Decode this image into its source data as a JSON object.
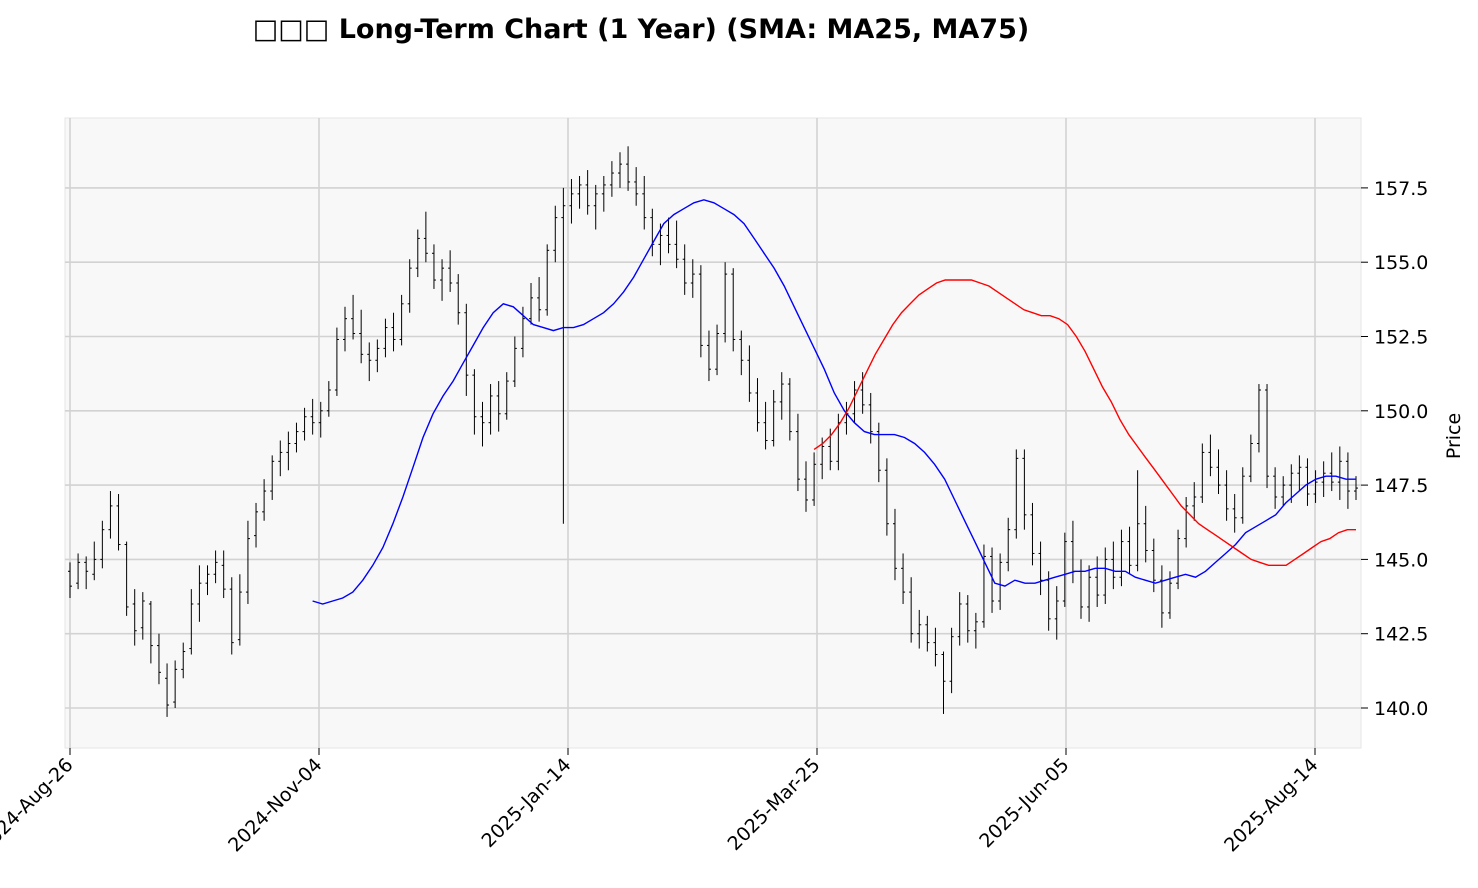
{
  "chart_data": {
    "type": "candlestick",
    "title": "□□□ Long-Term Chart (1 Year) (SMA: MA25, MA75)",
    "xlabel": "",
    "ylabel": "Price",
    "ylim": [
      138.6,
      159.8
    ],
    "y_ticks": [
      "140.0",
      "142.5",
      "145.0",
      "147.5",
      "150.0",
      "152.5",
      "155.0",
      "157.5"
    ],
    "x_ticks": [
      "2024-Aug-26",
      "2024-Nov-04",
      "2025-Jan-14",
      "2025-Mar-25",
      "2025-Jun-05",
      "2025-Aug-14"
    ],
    "grid": true,
    "bar_color": "#000000",
    "ohlc_note": "approximate daily prices read from the chart, one per trading day (~250 days)",
    "ohlc": [
      [
        144.6,
        144.9,
        143.7,
        144.1
      ],
      [
        144.2,
        145.2,
        144.0,
        144.9
      ],
      [
        144.9,
        145.1,
        144.0,
        144.6
      ],
      [
        144.5,
        145.6,
        144.3,
        145.0
      ],
      [
        145.0,
        146.3,
        144.7,
        146.0
      ],
      [
        146.0,
        147.3,
        145.7,
        146.8
      ],
      [
        146.8,
        147.2,
        145.3,
        145.5
      ],
      [
        145.5,
        145.6,
        143.1,
        143.4
      ],
      [
        143.5,
        144.0,
        142.1,
        142.6
      ],
      [
        142.7,
        143.9,
        142.3,
        143.6
      ],
      [
        143.5,
        143.6,
        141.5,
        142.1
      ],
      [
        142.1,
        142.5,
        140.8,
        141.2
      ],
      [
        141.0,
        141.5,
        139.7,
        140.1
      ],
      [
        140.2,
        141.6,
        140.0,
        141.3
      ],
      [
        141.3,
        142.2,
        141.0,
        141.9
      ],
      [
        142.0,
        144.0,
        141.8,
        143.5
      ],
      [
        143.5,
        144.8,
        142.9,
        144.2
      ],
      [
        144.2,
        144.8,
        143.8,
        144.5
      ],
      [
        144.5,
        145.3,
        144.2,
        144.9
      ],
      [
        144.8,
        145.3,
        143.7,
        144.0
      ],
      [
        144.0,
        144.4,
        141.8,
        142.2
      ],
      [
        142.3,
        144.5,
        142.1,
        143.9
      ],
      [
        143.9,
        146.3,
        143.5,
        145.7
      ],
      [
        145.8,
        146.9,
        145.4,
        146.6
      ],
      [
        146.6,
        147.7,
        146.3,
        147.3
      ],
      [
        147.3,
        148.5,
        147.0,
        148.3
      ],
      [
        148.3,
        149.0,
        147.8,
        148.6
      ],
      [
        148.6,
        149.3,
        148.0,
        148.9
      ],
      [
        148.9,
        149.6,
        148.6,
        149.3
      ],
      [
        149.3,
        150.1,
        149.0,
        149.8
      ],
      [
        149.8,
        150.4,
        149.2,
        149.6
      ],
      [
        149.6,
        150.3,
        149.1,
        150.0
      ],
      [
        150.0,
        151.0,
        149.8,
        150.7
      ],
      [
        150.7,
        152.8,
        150.5,
        152.4
      ],
      [
        152.4,
        153.5,
        152.0,
        153.1
      ],
      [
        153.1,
        153.9,
        152.4,
        152.6
      ],
      [
        152.6,
        153.4,
        151.6,
        151.9
      ],
      [
        151.9,
        152.3,
        151.0,
        151.7
      ],
      [
        151.7,
        152.4,
        151.3,
        152.1
      ],
      [
        152.1,
        153.1,
        151.8,
        152.8
      ],
      [
        152.8,
        153.3,
        152.0,
        152.4
      ],
      [
        152.4,
        153.9,
        152.2,
        153.6
      ],
      [
        153.6,
        155.1,
        153.3,
        154.8
      ],
      [
        154.8,
        156.1,
        154.5,
        155.8
      ],
      [
        155.8,
        156.7,
        155.0,
        155.3
      ],
      [
        155.3,
        155.6,
        154.1,
        154.4
      ],
      [
        154.4,
        155.1,
        153.7,
        154.8
      ],
      [
        154.8,
        155.4,
        154.0,
        154.3
      ],
      [
        154.3,
        154.6,
        152.9,
        153.3
      ],
      [
        153.3,
        153.6,
        150.5,
        151.2
      ],
      [
        151.2,
        151.4,
        149.2,
        149.8
      ],
      [
        149.8,
        150.3,
        148.8,
        149.6
      ],
      [
        149.6,
        150.9,
        149.2,
        150.5
      ],
      [
        150.5,
        151.0,
        149.3,
        149.9
      ],
      [
        149.9,
        151.3,
        149.7,
        151.0
      ],
      [
        151.0,
        152.5,
        150.8,
        152.1
      ],
      [
        152.1,
        153.5,
        151.8,
        153.1
      ],
      [
        153.1,
        154.3,
        152.9,
        153.8
      ],
      [
        153.8,
        154.5,
        153.0,
        153.4
      ],
      [
        153.4,
        155.6,
        153.2,
        155.4
      ],
      [
        155.4,
        156.9,
        155.0,
        156.5
      ],
      [
        156.5,
        157.5,
        146.2,
        156.9
      ],
      [
        156.9,
        157.8,
        156.3,
        157.3
      ],
      [
        157.3,
        157.9,
        156.8,
        157.6
      ],
      [
        157.6,
        158.1,
        156.6,
        156.9
      ],
      [
        156.9,
        157.6,
        156.1,
        157.3
      ],
      [
        157.3,
        157.9,
        156.7,
        157.6
      ],
      [
        157.6,
        158.4,
        157.2,
        158.0
      ],
      [
        158.0,
        158.7,
        157.5,
        158.3
      ],
      [
        158.3,
        158.9,
        157.4,
        157.7
      ],
      [
        157.7,
        158.2,
        156.9,
        157.3
      ],
      [
        157.3,
        157.9,
        156.1,
        156.5
      ],
      [
        156.5,
        156.8,
        155.2,
        155.6
      ],
      [
        155.6,
        156.3,
        154.9,
        155.9
      ],
      [
        155.9,
        156.5,
        155.3,
        155.6
      ],
      [
        155.6,
        156.4,
        154.8,
        155.1
      ],
      [
        155.1,
        155.6,
        153.9,
        154.3
      ],
      [
        154.3,
        155.1,
        153.8,
        154.6
      ],
      [
        154.6,
        154.9,
        151.8,
        152.2
      ],
      [
        152.2,
        152.7,
        151.0,
        151.4
      ],
      [
        151.4,
        152.9,
        151.2,
        152.6
      ],
      [
        152.6,
        155.0,
        152.3,
        154.6
      ],
      [
        154.6,
        154.8,
        152.0,
        152.4
      ],
      [
        152.4,
        152.7,
        151.2,
        151.7
      ],
      [
        151.7,
        152.2,
        150.3,
        150.6
      ],
      [
        150.6,
        151.1,
        149.3,
        149.6
      ],
      [
        149.6,
        150.3,
        148.7,
        149.0
      ],
      [
        149.0,
        150.7,
        148.8,
        150.3
      ],
      [
        150.3,
        151.3,
        149.7,
        150.9
      ],
      [
        150.9,
        151.1,
        149.0,
        149.3
      ],
      [
        149.3,
        149.9,
        147.3,
        147.7
      ],
      [
        147.7,
        148.3,
        146.6,
        147.0
      ],
      [
        147.0,
        148.6,
        146.8,
        148.2
      ],
      [
        148.2,
        149.1,
        147.7,
        148.8
      ],
      [
        148.8,
        149.4,
        148.0,
        148.3
      ],
      [
        148.3,
        149.9,
        148.0,
        149.6
      ],
      [
        149.6,
        150.3,
        149.2,
        149.9
      ],
      [
        149.9,
        151.0,
        149.6,
        150.7
      ],
      [
        150.7,
        151.3,
        149.9,
        150.2
      ],
      [
        150.2,
        150.6,
        148.9,
        149.3
      ],
      [
        149.3,
        149.6,
        147.6,
        148.0
      ],
      [
        148.0,
        148.4,
        145.8,
        146.2
      ],
      [
        146.2,
        146.7,
        144.3,
        144.7
      ],
      [
        144.7,
        145.2,
        143.5,
        143.9
      ],
      [
        143.9,
        144.4,
        142.2,
        142.5
      ],
      [
        142.5,
        143.3,
        142.0,
        142.8
      ],
      [
        142.8,
        143.1,
        141.9,
        142.2
      ],
      [
        142.2,
        142.7,
        141.4,
        141.8
      ],
      [
        141.8,
        141.9,
        139.8,
        140.9
      ],
      [
        140.9,
        142.7,
        140.5,
        142.4
      ],
      [
        142.4,
        143.9,
        142.1,
        143.5
      ],
      [
        143.5,
        143.8,
        142.2,
        142.6
      ],
      [
        142.6,
        143.2,
        142.0,
        142.9
      ],
      [
        142.9,
        145.5,
        142.7,
        145.1
      ],
      [
        145.1,
        145.4,
        143.2,
        143.6
      ],
      [
        143.6,
        145.2,
        143.3,
        144.9
      ],
      [
        144.9,
        146.4,
        144.6,
        146.0
      ],
      [
        146.0,
        148.7,
        145.7,
        148.4
      ],
      [
        148.4,
        148.7,
        146.0,
        146.5
      ],
      [
        146.5,
        146.9,
        144.8,
        145.2
      ],
      [
        145.2,
        145.6,
        143.8,
        144.3
      ],
      [
        144.3,
        144.6,
        142.6,
        143.0
      ],
      [
        143.0,
        144.1,
        142.3,
        143.6
      ],
      [
        143.6,
        145.9,
        143.4,
        145.6
      ],
      [
        145.6,
        146.3,
        144.2,
        144.6
      ],
      [
        144.6,
        145.0,
        143.0,
        143.4
      ],
      [
        143.4,
        144.8,
        142.9,
        144.4
      ],
      [
        144.4,
        145.1,
        143.4,
        143.8
      ],
      [
        143.8,
        145.4,
        143.5,
        145.0
      ],
      [
        145.0,
        145.6,
        144.0,
        144.4
      ],
      [
        144.4,
        146.0,
        144.1,
        145.6
      ],
      [
        145.6,
        146.1,
        144.5,
        144.8
      ],
      [
        144.8,
        148.0,
        144.6,
        146.2
      ],
      [
        146.2,
        146.8,
        144.9,
        145.3
      ],
      [
        145.3,
        145.7,
        143.9,
        144.3
      ],
      [
        144.3,
        144.8,
        142.7,
        143.2
      ],
      [
        143.2,
        144.6,
        143.0,
        144.2
      ],
      [
        144.2,
        146.0,
        144.0,
        145.7
      ],
      [
        145.7,
        147.1,
        145.4,
        146.8
      ],
      [
        146.8,
        147.6,
        146.3,
        147.1
      ],
      [
        147.1,
        148.9,
        146.9,
        148.6
      ],
      [
        148.6,
        149.2,
        147.8,
        148.1
      ],
      [
        148.1,
        148.7,
        147.2,
        147.5
      ],
      [
        147.5,
        148.0,
        146.3,
        146.7
      ],
      [
        146.7,
        147.2,
        145.9,
        146.4
      ],
      [
        146.4,
        148.1,
        146.2,
        147.8
      ],
      [
        147.8,
        149.2,
        147.6,
        148.9
      ],
      [
        148.9,
        150.9,
        148.6,
        150.7
      ],
      [
        150.7,
        150.9,
        147.4,
        147.8
      ],
      [
        147.8,
        148.1,
        146.7,
        147.1
      ],
      [
        147.1,
        147.8,
        146.8,
        147.5
      ],
      [
        147.5,
        148.2,
        146.9,
        147.9
      ],
      [
        147.9,
        148.5,
        147.3,
        148.1
      ],
      [
        148.1,
        148.4,
        146.8,
        147.2
      ],
      [
        147.2,
        148.0,
        146.9,
        147.6
      ],
      [
        147.6,
        148.3,
        147.1,
        147.9
      ],
      [
        147.9,
        148.6,
        147.3,
        147.6
      ],
      [
        147.6,
        148.8,
        147.0,
        148.3
      ],
      [
        148.3,
        148.6,
        146.7,
        147.3
      ],
      [
        147.3,
        147.8,
        147.0,
        147.4
      ]
    ],
    "series": [
      {
        "name": "MA25",
        "color": "#0000ff",
        "values": [
          143.6,
          143.5,
          143.6,
          143.7,
          143.9,
          144.3,
          144.8,
          145.4,
          146.2,
          147.1,
          148.1,
          149.1,
          149.9,
          150.5,
          151.0,
          151.6,
          152.2,
          152.8,
          153.3,
          153.6,
          153.5,
          153.2,
          152.9,
          152.8,
          152.7,
          152.8,
          152.8,
          152.9,
          153.1,
          153.3,
          153.6,
          154.0,
          154.5,
          155.1,
          155.7,
          156.3,
          156.6,
          156.8,
          157.0,
          157.1,
          157.0,
          156.8,
          156.6,
          156.3,
          155.8,
          155.3,
          154.8,
          154.2,
          153.5,
          152.8,
          152.1,
          151.4,
          150.6,
          150.0,
          149.6,
          149.3,
          149.2,
          149.2,
          149.2,
          149.1,
          148.9,
          148.6,
          148.2,
          147.7,
          147.0,
          146.3,
          145.6,
          144.9,
          144.2,
          144.1,
          144.3,
          144.2,
          144.2,
          144.3,
          144.4,
          144.5,
          144.6,
          144.6,
          144.7,
          144.7,
          144.6,
          144.6,
          144.4,
          144.3,
          144.2,
          144.3,
          144.4,
          144.5,
          144.4,
          144.6,
          144.9,
          145.2,
          145.5,
          145.9,
          146.1,
          146.3,
          146.5,
          146.9,
          147.2,
          147.5,
          147.7,
          147.8,
          147.8,
          147.7,
          147.7
        ]
      },
      {
        "name": "MA75",
        "color": "#ff0000",
        "values": [
          148.7,
          148.9,
          149.2,
          149.6,
          150.1,
          150.7,
          151.3,
          151.9,
          152.4,
          152.9,
          153.3,
          153.6,
          153.9,
          154.1,
          154.3,
          154.4,
          154.4,
          154.4,
          154.4,
          154.3,
          154.2,
          154.0,
          153.8,
          153.6,
          153.4,
          153.3,
          153.2,
          153.2,
          153.1,
          152.9,
          152.5,
          152.0,
          151.4,
          150.8,
          150.3,
          149.7,
          149.2,
          148.8,
          148.4,
          148.0,
          147.6,
          147.2,
          146.8,
          146.5,
          146.2,
          146.0,
          145.8,
          145.6,
          145.4,
          145.2,
          145.0,
          144.9,
          144.8,
          144.8,
          144.8,
          145.0,
          145.2,
          145.4,
          145.6,
          145.7,
          145.9,
          146.0,
          146.0
        ]
      }
    ]
  }
}
